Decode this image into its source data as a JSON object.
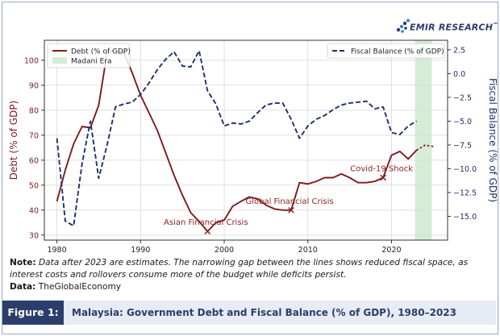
{
  "brand": {
    "name": "EMIR RESEARCH",
    "trademark": "™"
  },
  "figure": {
    "label": "Figure 1:",
    "title": "Malaysia: Government Debt and Fiscal Balance (% of GDP), 1980–2023"
  },
  "note": {
    "label": "Note:",
    "text": "Data after 2023 are estimates. The narrowing gap between the lines shows reduced fiscal space, as interest costs and rollovers consume more of the budget while deficits persist."
  },
  "source": {
    "label": "Data:",
    "text": "TheGlobalEconomy"
  },
  "colors": {
    "debt": "#7b1c1c",
    "fiscal": "#1f2f6b",
    "madani": "#d5ecd6",
    "brand": "#2b3e6b",
    "annotation": "#8b2323"
  },
  "chart_data": {
    "type": "line",
    "title": "",
    "xlabel": "",
    "x_ticks": [
      1980,
      1990,
      2000,
      2010,
      2020
    ],
    "xlim": [
      1978.5,
      2026.7
    ],
    "y_left": {
      "label": "Debt (% of GDP)",
      "lim": [
        28,
        108
      ],
      "ticks": [
        30,
        40,
        50,
        60,
        70,
        80,
        90,
        100
      ]
    },
    "y_right": {
      "label": "Fiscal Balance (% of GDP)",
      "lim": [
        -17.5,
        3.5
      ],
      "ticks": [
        2.5,
        0.0,
        -2.5,
        -5.0,
        -7.5,
        -10.0,
        -12.5,
        -15.0
      ],
      "tick_labels": [
        "2.5",
        "0.0",
        "−2.5",
        "−5.0",
        "−7.5",
        "−10.0",
        "−12.5",
        "−15.0"
      ]
    },
    "legend_left": {
      "position": "top-left",
      "entries": [
        "Debt (% of GDP)",
        "Madani Era"
      ]
    },
    "legend_right": {
      "position": "top-right",
      "entries": [
        "Fiscal Balance (% of GDP)"
      ]
    },
    "shaded_region": {
      "name": "Madani Era",
      "x": [
        2022.8,
        2024.8
      ]
    },
    "series": [
      {
        "name": "Debt (% of GDP)",
        "axis": "left",
        "style": "solid",
        "x": [
          1980,
          1981,
          1982,
          1983,
          1984,
          1985,
          1986,
          1987,
          1988,
          1989,
          1990,
          1991,
          1992,
          1993,
          1994,
          1995,
          1996,
          1997,
          1998,
          1999,
          2000,
          2001,
          2002,
          2003,
          2004,
          2005,
          2006,
          2007,
          2008,
          2009,
          2010,
          2011,
          2012,
          2013,
          2014,
          2015,
          2016,
          2017,
          2018,
          2019,
          2020,
          2021,
          2022,
          2023
        ],
        "values": [
          43.5,
          56,
          66.5,
          73.5,
          73,
          82,
          103,
          104,
          103,
          95,
          86,
          79,
          72,
          63,
          54,
          46,
          39,
          35.5,
          31.5,
          35,
          36,
          41.5,
          43.5,
          45.3,
          44.5,
          42,
          40.5,
          40,
          40,
          51,
          50.5,
          51.5,
          53,
          53,
          54.5,
          53,
          51,
          51,
          51.5,
          53,
          62,
          63.5,
          60.5,
          64
        ]
      },
      {
        "name": "Debt estimate",
        "axis": "left",
        "style": "dotted",
        "x": [
          2023,
          2024,
          2025
        ],
        "values": [
          64,
          66,
          65.5
        ]
      },
      {
        "name": "Fiscal Balance (% of GDP)",
        "axis": "right",
        "style": "dashed",
        "x": [
          1980,
          1981,
          1982,
          1983,
          1984,
          1985,
          1986,
          1987,
          1988,
          1989,
          1990,
          1991,
          1992,
          1993,
          1994,
          1995,
          1996,
          1997,
          1998,
          1999,
          2000,
          2001,
          2002,
          2003,
          2004,
          2005,
          2006,
          2007,
          2008,
          2009,
          2010,
          2011,
          2012,
          2013,
          2014,
          2015,
          2016,
          2017,
          2018,
          2019,
          2020,
          2021,
          2022,
          2023
        ],
        "values": [
          -6.8,
          -15.5,
          -16,
          -9.5,
          -5,
          -11,
          -7.5,
          -3.5,
          -3.2,
          -3,
          -2.2,
          -1,
          0.4,
          1.5,
          2.3,
          0.8,
          0.7,
          2.4,
          -1.8,
          -3.2,
          -5.5,
          -5.2,
          -5.3,
          -5,
          -4.1,
          -3.3,
          -3.1,
          -3.1,
          -4.8,
          -6.8,
          -5.5,
          -4.8,
          -4.4,
          -3.8,
          -3.3,
          -3.1,
          -3.0,
          -2.9,
          -3.7,
          -3.5,
          -6.2,
          -6.4,
          -5.5,
          -5.0
        ]
      }
    ],
    "annotations": [
      {
        "text": "Asian Financial Crisis",
        "x": 1998,
        "y": 31.5
      },
      {
        "text": "Global Financial Crisis",
        "x": 2008,
        "y": 40
      },
      {
        "text": "Covid-19 Shock",
        "x": 2019,
        "y": 53
      }
    ]
  }
}
